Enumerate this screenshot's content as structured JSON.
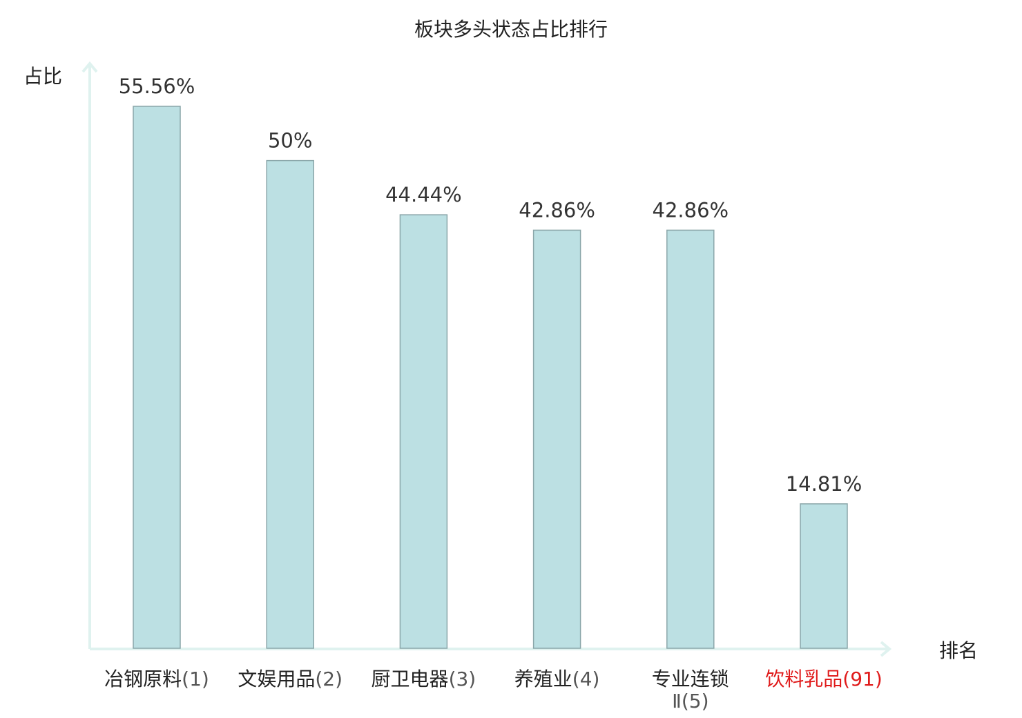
{
  "chart_data": {
    "type": "bar",
    "title": "板块多头状态占比排行",
    "ylabel": "占比",
    "xlabel": "排名",
    "categories": [
      {
        "name": "冶钢原料",
        "rank": "(1)"
      },
      {
        "name": "文娱用品",
        "rank": "(2)"
      },
      {
        "name": "厨卫电器",
        "rank": "(3)"
      },
      {
        "name": "养殖业",
        "rank": "(4)"
      },
      {
        "name": "专业连锁",
        "name_line2": "Ⅱ",
        "rank": "(5)"
      },
      {
        "name": "饮料乳品",
        "rank": "(91)"
      }
    ],
    "values": [
      55.56,
      50,
      44.44,
      42.86,
      42.86,
      14.81
    ],
    "value_labels": [
      "55.56%",
      "50%",
      "44.44%",
      "42.86%",
      "42.86%",
      "14.81%"
    ],
    "ylim": [
      0,
      60
    ],
    "grid": false,
    "colors": {
      "bar_fill": "#bce0e3",
      "bar_stroke": "#8aa6a9",
      "axis": "#dff2ef",
      "label": "#333333",
      "category_default": "#222222",
      "category_rank_default": "#555555",
      "category_highlight": "#e01b1b",
      "highlight_index": 5
    }
  }
}
